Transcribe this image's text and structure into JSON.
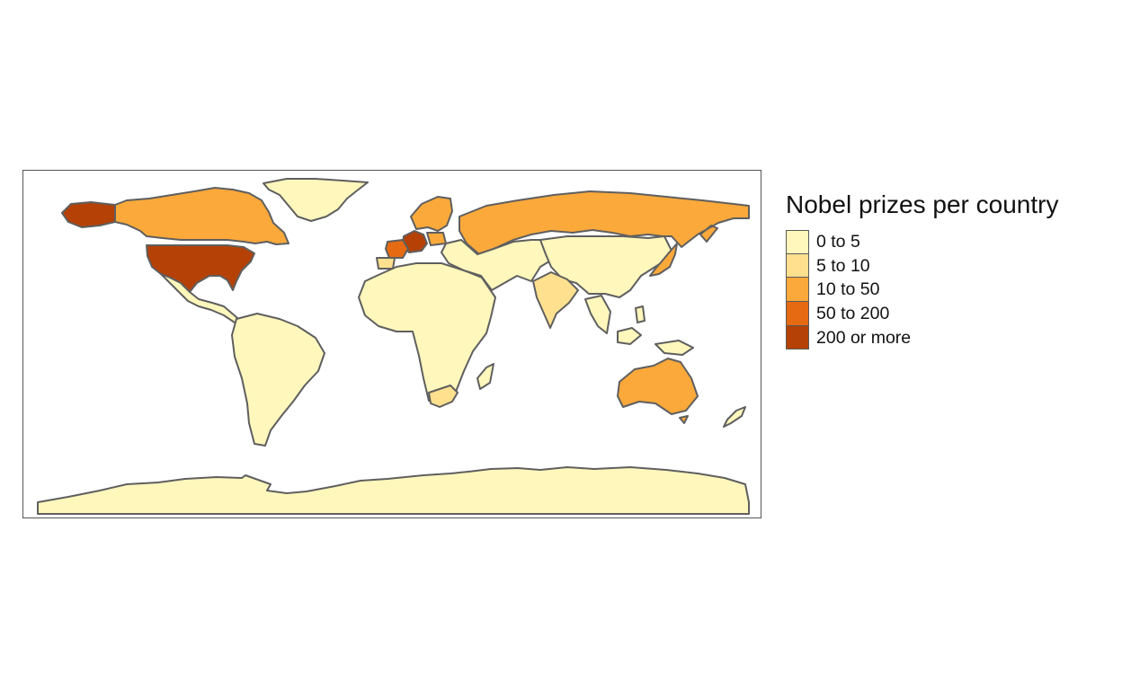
{
  "legend": {
    "title": "Nobel prizes per country",
    "classes": [
      {
        "label": "0 to 5",
        "color": "#FFF7BC"
      },
      {
        "label": "5 to 10",
        "color": "#FEE08F"
      },
      {
        "label": "10 to 50",
        "color": "#FBA93A"
      },
      {
        "label": "50 to 200",
        "color": "#E56A12"
      },
      {
        "label": "200 or more",
        "color": "#B54106"
      }
    ]
  },
  "regions": [
    {
      "name": "Antarctica",
      "class": 0
    },
    {
      "name": "Greenland",
      "class": 0
    },
    {
      "name": "Canada",
      "class": 2
    },
    {
      "name": "United States",
      "class": 4
    },
    {
      "name": "Mexico and Central America",
      "class": 0
    },
    {
      "name": "South America",
      "class": 0
    },
    {
      "name": "Africa",
      "class": 0
    },
    {
      "name": "South Africa",
      "class": 1
    },
    {
      "name": "Russia",
      "class": 2
    },
    {
      "name": "Scandinavia",
      "class": 2
    },
    {
      "name": "Germany",
      "class": 4
    },
    {
      "name": "France",
      "class": 3
    },
    {
      "name": "Spain",
      "class": 1
    },
    {
      "name": "Poland",
      "class": 2
    },
    {
      "name": "Middle East and Central Asia",
      "class": 0
    },
    {
      "name": "China and Mongolia",
      "class": 0
    },
    {
      "name": "India",
      "class": 1
    },
    {
      "name": "Japan",
      "class": 2
    },
    {
      "name": "Southeast Asia",
      "class": 0
    },
    {
      "name": "Australia",
      "class": 2
    },
    {
      "name": "New Zealand",
      "class": 0
    }
  ]
}
